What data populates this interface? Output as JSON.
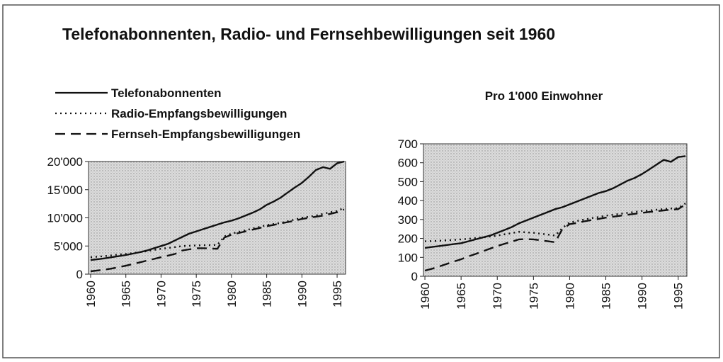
{
  "title": "Telefonabonnenten, Radio- und Fernsehbewilligungen seit 1960",
  "chart_data": [
    {
      "type": "line",
      "x": [
        1960,
        1961,
        1962,
        1963,
        1964,
        1965,
        1966,
        1967,
        1968,
        1969,
        1970,
        1971,
        1972,
        1973,
        1974,
        1975,
        1976,
        1977,
        1978,
        1979,
        1980,
        1981,
        1982,
        1983,
        1984,
        1985,
        1986,
        1987,
        1988,
        1989,
        1990,
        1991,
        1992,
        1993,
        1994,
        1995,
        1996
      ],
      "series": [
        {
          "name": "Telefonabonnenten",
          "color": "#111111",
          "style": "solid",
          "values": [
            2500,
            2650,
            2800,
            3000,
            3200,
            3400,
            3650,
            3900,
            4200,
            4600,
            5000,
            5400,
            6000,
            6600,
            7200,
            7600,
            8000,
            8400,
            8800,
            9200,
            9500,
            9900,
            10400,
            10900,
            11500,
            12300,
            12900,
            13600,
            14500,
            15400,
            16200,
            17300,
            18500,
            19000,
            18700,
            19700,
            20000
          ]
        },
        {
          "name": "Radio-Empfangsbewilligungen",
          "color": "#111111",
          "style": "dotted",
          "values": [
            3000,
            3100,
            3200,
            3350,
            3500,
            3600,
            3750,
            3900,
            4100,
            4300,
            4500,
            4650,
            4800,
            5000,
            5050,
            5100,
            5150,
            5150,
            5200,
            6700,
            7200,
            7500,
            7800,
            8100,
            8400,
            8700,
            8900,
            9100,
            9400,
            9700,
            10000,
            10200,
            10400,
            10700,
            11000,
            11200,
            11800
          ]
        },
        {
          "name": "Fernseh-Empfangsbewilligungen",
          "color": "#111111",
          "style": "dashed",
          "values": [
            500,
            650,
            800,
            1000,
            1250,
            1500,
            1800,
            2100,
            2400,
            2700,
            3000,
            3300,
            3600,
            4200,
            4400,
            4600,
            4600,
            4550,
            4500,
            6500,
            7000,
            7300,
            7600,
            7900,
            8200,
            8500,
            8750,
            9000,
            9250,
            9500,
            9800,
            10000,
            10200,
            10400,
            10700,
            11000,
            11500
          ]
        }
      ],
      "xlim": [
        1959.7,
        1996.2
      ],
      "xticks": [
        1960,
        1965,
        1970,
        1975,
        1980,
        1985,
        1990,
        1995
      ],
      "ylim": [
        0,
        20000
      ],
      "yticks": [
        0,
        {
          "value": 5000,
          "label": "5'000"
        },
        {
          "value": 10000,
          "label": "10'000"
        },
        {
          "value": 15000,
          "label": "15'000"
        },
        {
          "value": 20000,
          "label": "20'000"
        }
      ]
    },
    {
      "type": "line",
      "subtitle": "Pro 1'000 Einwohner",
      "x": [
        1960,
        1961,
        1962,
        1963,
        1964,
        1965,
        1966,
        1967,
        1968,
        1969,
        1970,
        1971,
        1972,
        1973,
        1974,
        1975,
        1976,
        1977,
        1978,
        1979,
        1980,
        1981,
        1982,
        1983,
        1984,
        1985,
        1986,
        1987,
        1988,
        1989,
        1990,
        1991,
        1992,
        1993,
        1994,
        1995,
        1996
      ],
      "series": [
        {
          "color": "#111111",
          "style": "solid",
          "values": [
            150,
            155,
            160,
            165,
            170,
            175,
            185,
            195,
            205,
            215,
            230,
            245,
            260,
            280,
            295,
            310,
            325,
            340,
            355,
            365,
            380,
            395,
            410,
            425,
            440,
            450,
            465,
            485,
            505,
            520,
            540,
            565,
            590,
            615,
            605,
            630,
            635
          ]
        },
        {
          "color": "#111111",
          "style": "dotted",
          "values": [
            185,
            186,
            188,
            190,
            192,
            195,
            198,
            202,
            206,
            210,
            215,
            222,
            228,
            235,
            232,
            230,
            225,
            220,
            215,
            255,
            285,
            292,
            300,
            307,
            313,
            320,
            325,
            330,
            335,
            340,
            345,
            348,
            352,
            355,
            358,
            360,
            385
          ]
        },
        {
          "color": "#111111",
          "style": "dashed",
          "values": [
            30,
            40,
            52,
            65,
            78,
            90,
            105,
            118,
            132,
            146,
            160,
            172,
            183,
            195,
            196,
            195,
            190,
            185,
            180,
            250,
            275,
            282,
            290,
            297,
            303,
            310,
            315,
            320,
            325,
            330,
            335,
            340,
            344,
            348,
            352,
            355,
            380
          ]
        }
      ],
      "xlim": [
        1959.8,
        1996.2
      ],
      "xticks": [
        1960,
        1965,
        1970,
        1975,
        1980,
        1985,
        1990,
        1995
      ],
      "ylim": [
        0,
        700
      ],
      "yticks": [
        0,
        100,
        200,
        300,
        400,
        500,
        600,
        700
      ]
    }
  ]
}
